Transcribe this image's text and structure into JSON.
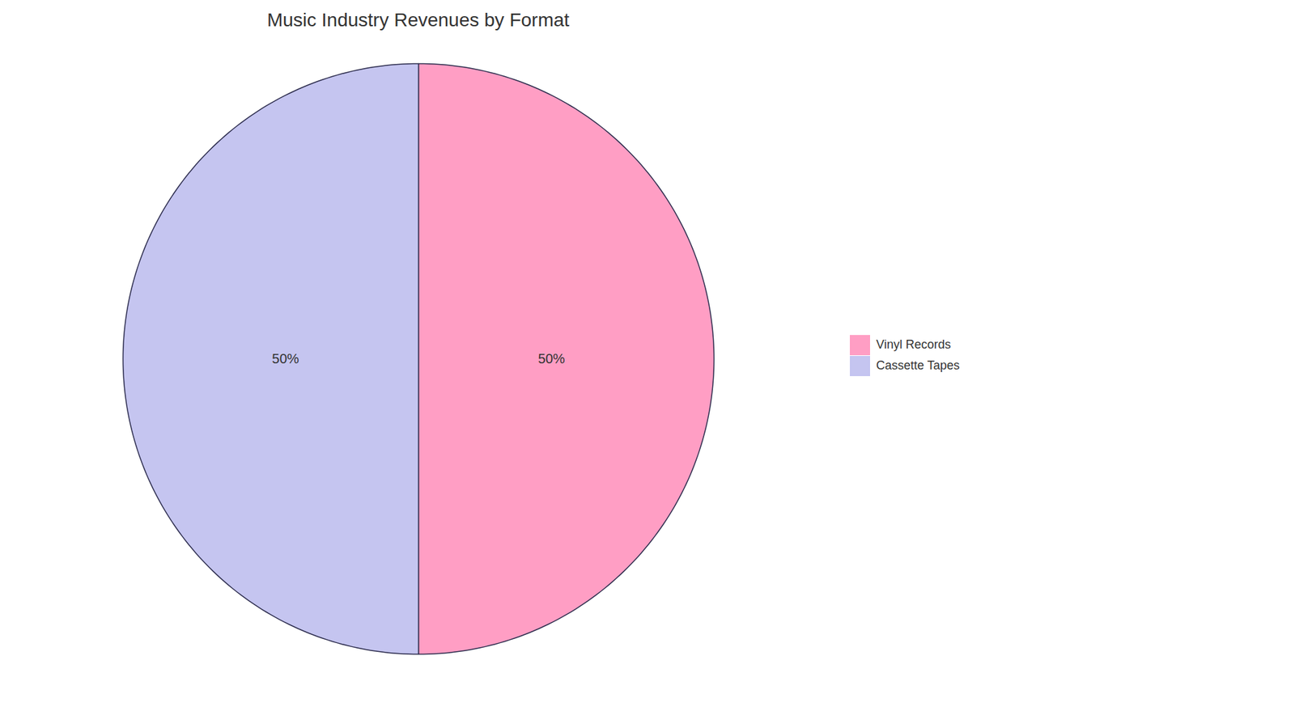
{
  "chart_data": {
    "type": "pie",
    "title": "Music Industry Revenues by Format",
    "categories": [
      "Vinyl Records",
      "Cassette Tapes"
    ],
    "values": [
      50,
      50
    ],
    "value_labels": [
      "50%",
      "50%"
    ],
    "colors": [
      "#FF9EC4",
      "#C5C5F0"
    ],
    "data_labels": true,
    "legend": "right"
  }
}
